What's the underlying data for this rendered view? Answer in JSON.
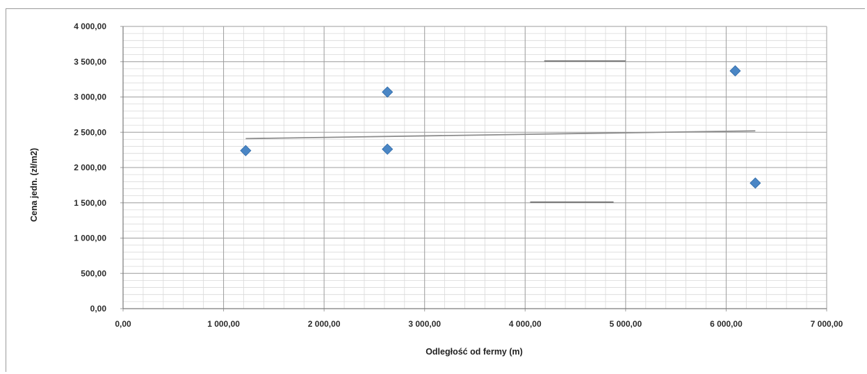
{
  "chart_data": {
    "type": "scatter",
    "title": "",
    "xlabel": "Odległość od fermy (m)",
    "ylabel": "Cena jedn. (zł/m2)",
    "xlim": [
      0,
      7000
    ],
    "ylim": [
      0,
      4000
    ],
    "x_ticks": [
      0,
      1000,
      2000,
      3000,
      4000,
      5000,
      6000,
      7000
    ],
    "x_tick_labels": [
      "0,00",
      "1 000,00",
      "2 000,00",
      "3 000,00",
      "4 000,00",
      "5 000,00",
      "6 000,00",
      "7 000,00"
    ],
    "y_ticks": [
      0,
      500,
      1000,
      1500,
      2000,
      2500,
      3000,
      3500,
      4000
    ],
    "y_tick_labels": [
      "0,00",
      "500,00",
      "1 000,00",
      "1 500,00",
      "2 000,00",
      "2 500,00",
      "3 000,00",
      "3 500,00",
      "4 000,00"
    ],
    "grid": true,
    "minor_grid": true,
    "legend": "none",
    "series": [
      {
        "marker": "diamond",
        "color": "#4a86c5",
        "points": [
          {
            "x": 1220,
            "y": 2240
          },
          {
            "x": 2630,
            "y": 3070
          },
          {
            "x": 2630,
            "y": 2260
          },
          {
            "x": 6090,
            "y": 3370
          },
          {
            "x": 6290,
            "y": 1780
          }
        ]
      }
    ],
    "trendline": {
      "color": "#8c8c8c",
      "from": {
        "x": 1220,
        "y": 2410
      },
      "to": {
        "x": 6290,
        "y": 2520
      }
    },
    "annotation_lines": [
      {
        "color": "#6e6e6e",
        "from": {
          "x": 4190,
          "y": 3510
        },
        "to": {
          "x": 5000,
          "y": 3510
        }
      },
      {
        "color": "#6e6e6e",
        "from": {
          "x": 4050,
          "y": 1510
        },
        "to": {
          "x": 4880,
          "y": 1510
        }
      }
    ]
  }
}
